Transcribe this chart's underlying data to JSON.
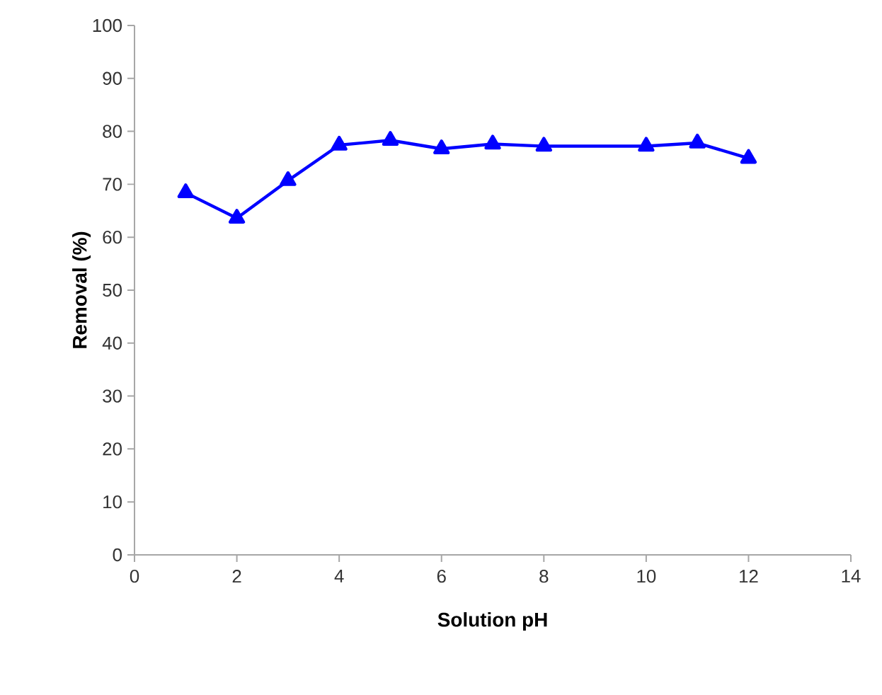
{
  "chart_data": {
    "type": "line",
    "xlabel": "Solution pH",
    "ylabel": "Removal (%)",
    "x": [
      1,
      2,
      3,
      4,
      5,
      6,
      7,
      8,
      10,
      11,
      12
    ],
    "series": [
      {
        "color": "#0000ff",
        "values": [
          68.4,
          63.6,
          70.7,
          77.4,
          78.3,
          76.7,
          77.6,
          77.2,
          77.2,
          77.8,
          74.9
        ]
      }
    ],
    "xlim": [
      0,
      14
    ],
    "xticks": [
      0,
      2,
      4,
      6,
      8,
      10,
      12,
      14
    ],
    "ylim": [
      0,
      100
    ],
    "yticks": [
      0,
      10,
      20,
      30,
      40,
      50,
      60,
      70,
      80,
      90,
      100
    ],
    "grid": false,
    "marker": "triangle",
    "line_style": "solid"
  }
}
